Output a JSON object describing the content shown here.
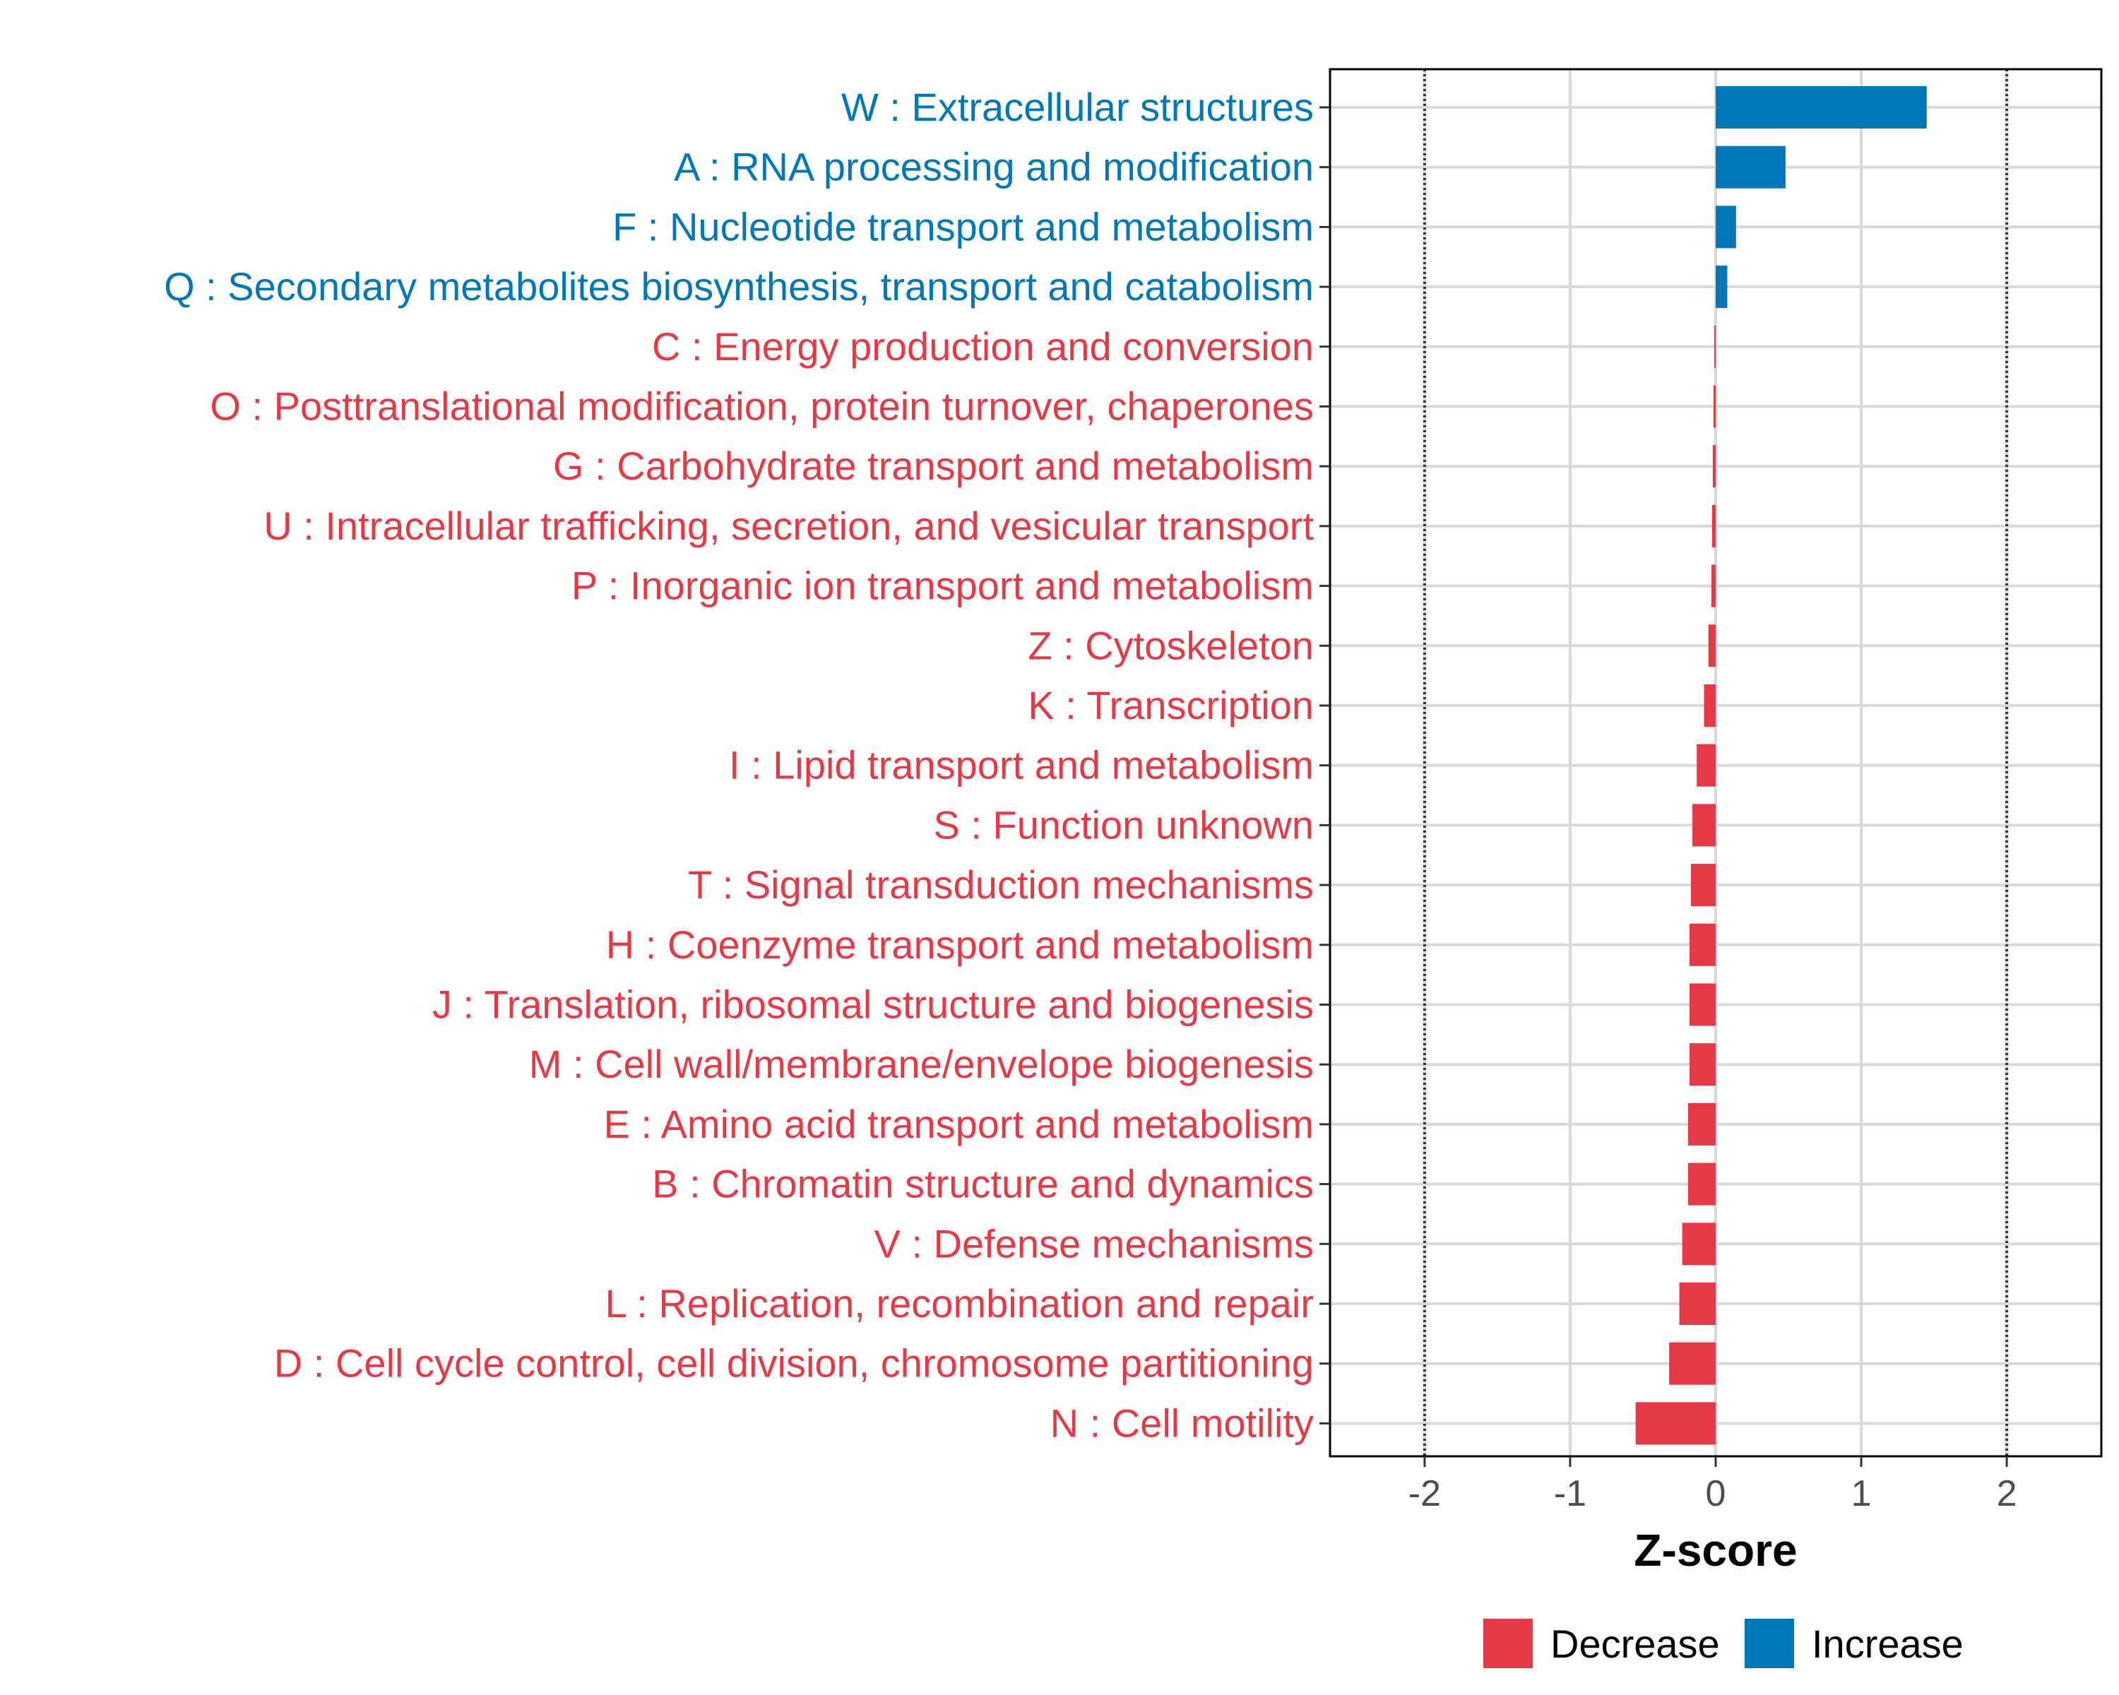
{
  "chart_data": {
    "type": "bar",
    "orientation": "horizontal",
    "title": "",
    "xlabel": "Z-score",
    "ylabel": "",
    "xlim": [
      -2.65,
      2.65
    ],
    "x_ticks": [
      -2,
      -1,
      0,
      1,
      2
    ],
    "x_tick_labels": [
      "-2",
      "-1",
      "0",
      "1",
      "2"
    ],
    "reference_lines": [
      -2,
      2
    ],
    "grid": true,
    "legend_position": "bottom",
    "colors": {
      "Decrease": "#e63946",
      "Increase": "#0077b6"
    },
    "legend": [
      {
        "label": "Decrease",
        "color": "#e63946"
      },
      {
        "label": "Increase",
        "color": "#0077b6"
      }
    ],
    "categories": [
      {
        "label": "W : Extracellular structures",
        "value": 1.45,
        "direction": "Increase"
      },
      {
        "label": "A : RNA processing and modification",
        "value": 0.48,
        "direction": "Increase"
      },
      {
        "label": "F : Nucleotide transport and metabolism",
        "value": 0.14,
        "direction": "Increase"
      },
      {
        "label": "Q : Secondary metabolites biosynthesis, transport and catabolism",
        "value": 0.08,
        "direction": "Increase"
      },
      {
        "label": "C : Energy production and conversion",
        "value": -0.01,
        "direction": "Decrease"
      },
      {
        "label": "O : Posttranslational modification, protein turnover, chaperones",
        "value": -0.015,
        "direction": "Decrease"
      },
      {
        "label": "G : Carbohydrate transport and metabolism",
        "value": -0.02,
        "direction": "Decrease"
      },
      {
        "label": "U : Intracellular trafficking, secretion, and vesicular transport",
        "value": -0.025,
        "direction": "Decrease"
      },
      {
        "label": "P : Inorganic ion transport and metabolism",
        "value": -0.03,
        "direction": "Decrease"
      },
      {
        "label": "Z : Cytoskeleton",
        "value": -0.05,
        "direction": "Decrease"
      },
      {
        "label": "K : Transcription",
        "value": -0.08,
        "direction": "Decrease"
      },
      {
        "label": "I : Lipid transport and metabolism",
        "value": -0.13,
        "direction": "Decrease"
      },
      {
        "label": "S : Function unknown",
        "value": -0.16,
        "direction": "Decrease"
      },
      {
        "label": "T : Signal transduction mechanisms",
        "value": -0.17,
        "direction": "Decrease"
      },
      {
        "label": "H : Coenzyme transport and metabolism",
        "value": -0.18,
        "direction": "Decrease"
      },
      {
        "label": "J : Translation, ribosomal structure and biogenesis",
        "value": -0.18,
        "direction": "Decrease"
      },
      {
        "label": "M : Cell wall/membrane/envelope biogenesis",
        "value": -0.18,
        "direction": "Decrease"
      },
      {
        "label": "E : Amino acid transport and metabolism",
        "value": -0.19,
        "direction": "Decrease"
      },
      {
        "label": "B : Chromatin structure and dynamics",
        "value": -0.19,
        "direction": "Decrease"
      },
      {
        "label": "V : Defense mechanisms",
        "value": -0.23,
        "direction": "Decrease"
      },
      {
        "label": "L : Replication, recombination and repair",
        "value": -0.25,
        "direction": "Decrease"
      },
      {
        "label": "D : Cell cycle control, cell division, chromosome partitioning",
        "value": -0.32,
        "direction": "Decrease"
      },
      {
        "label": "N : Cell motility",
        "value": -0.55,
        "direction": "Decrease"
      }
    ]
  }
}
